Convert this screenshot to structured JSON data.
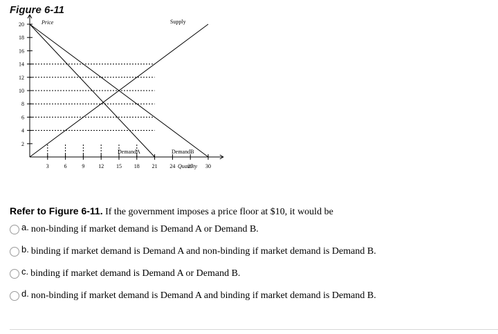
{
  "figure_title": "Figure 6-11",
  "chart_data": {
    "type": "line",
    "xlabel": "Quantity",
    "ylabel": "Price",
    "x_ticks": [
      3,
      6,
      9,
      12,
      15,
      18,
      21,
      24,
      27,
      30
    ],
    "y_ticks": [
      2,
      4,
      6,
      8,
      10,
      12,
      14,
      16,
      18,
      20
    ],
    "xlim": [
      0,
      33
    ],
    "ylim": [
      0,
      21
    ],
    "dashed_price_levels": [
      4,
      6,
      8,
      10,
      12,
      14
    ],
    "series": [
      {
        "name": "Supply",
        "x": [
          0,
          30
        ],
        "y": [
          0,
          20
        ]
      },
      {
        "name": "DemandA",
        "x": [
          0,
          21
        ],
        "y": [
          20,
          0
        ]
      },
      {
        "name": "DemandB",
        "x": [
          0,
          30
        ],
        "y": [
          20,
          0
        ]
      }
    ]
  },
  "question": {
    "ref": "Refer to Figure 6-11.",
    "text": " If the government imposes a price floor at $10, it would be"
  },
  "options": [
    {
      "letter": "a.",
      "text": "non-binding if market demand is Demand A or Demand B."
    },
    {
      "letter": "b.",
      "text": "binding if market demand is Demand A and non-binding if market demand is Demand B."
    },
    {
      "letter": "c.",
      "text": "binding if market demand is Demand A or Demand B."
    },
    {
      "letter": "d.",
      "text": "non-binding if market demand is Demand A and binding if market demand is Demand B."
    }
  ]
}
